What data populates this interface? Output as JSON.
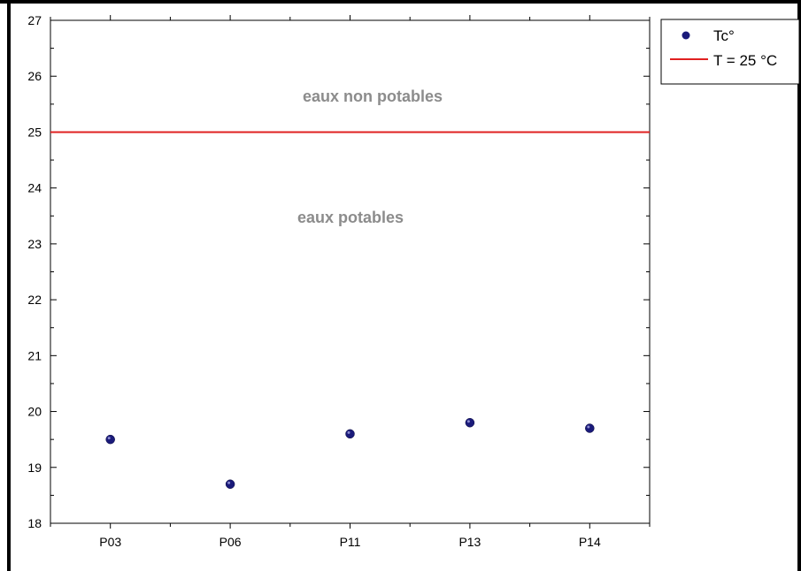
{
  "chart_data": {
    "type": "scatter",
    "categories": [
      "P03",
      "P06",
      "P11",
      "P13",
      "P14"
    ],
    "series": [
      {
        "name": "Tc°",
        "color": "#1a1a7a",
        "values": [
          19.5,
          18.7,
          19.6,
          19.8,
          19.7
        ]
      }
    ],
    "reference_line": {
      "label": "T = 25 °C",
      "value": 25,
      "color": "#e02020"
    },
    "annotations": [
      {
        "text": "eaux non potables"
      },
      {
        "text": "eaux potables"
      }
    ],
    "ylim": [
      18,
      27
    ],
    "yticks": [
      "18",
      "19",
      "20",
      "21",
      "22",
      "23",
      "24",
      "25",
      "26",
      "27"
    ],
    "grid": false,
    "legend_position": "top-right"
  }
}
